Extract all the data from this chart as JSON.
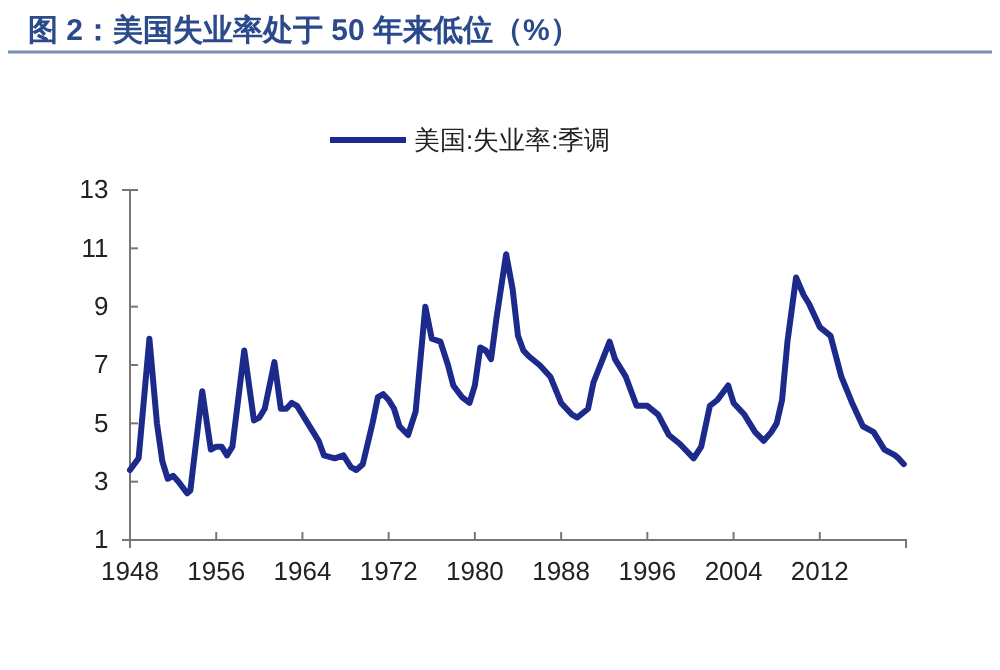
{
  "chart_data": {
    "type": "line",
    "title": "图 2：美国失业率处于 50 年来低位（%）",
    "xlim": [
      1948,
      2020
    ],
    "xticks": [
      1948,
      1956,
      1964,
      1972,
      1980,
      1988,
      1996,
      2004,
      2012
    ],
    "ylim": [
      1,
      13
    ],
    "yticks": [
      1,
      3,
      5,
      7,
      9,
      11,
      13
    ],
    "grid": false,
    "legend": "top",
    "marker": "none",
    "line_style": "solid",
    "series": [
      {
        "name": "美国:失业率:季调",
        "color": "#1c2a8c",
        "x": [
          1948.0,
          1948.8,
          1949.8,
          1950.5,
          1951.0,
          1951.5,
          1952.0,
          1952.5,
          1953.3,
          1953.6,
          1954.7,
          1955.5,
          1956.0,
          1956.5,
          1957.0,
          1957.5,
          1958.6,
          1959.5,
          1960.0,
          1960.5,
          1961.4,
          1962.0,
          1962.5,
          1963.0,
          1963.5,
          1964.5,
          1965.5,
          1966.0,
          1967.0,
          1967.8,
          1968.5,
          1969.0,
          1969.6,
          1970.5,
          1971.0,
          1971.5,
          1972.0,
          1972.5,
          1973.0,
          1973.8,
          1974.5,
          1975.4,
          1976.0,
          1976.8,
          1977.5,
          1978.0,
          1978.8,
          1979.5,
          1980.0,
          1980.5,
          1981.0,
          1981.5,
          1982.0,
          1982.9,
          1983.5,
          1984.0,
          1984.5,
          1985.0,
          1986.0,
          1987.0,
          1988.0,
          1989.0,
          1989.5,
          1990.5,
          1991.0,
          1992.5,
          1993.0,
          1994.0,
          1995.0,
          1996.0,
          1997.0,
          1998.0,
          1999.0,
          2000.3,
          2001.0,
          2001.8,
          2002.5,
          2003.5,
          2004.0,
          2005.0,
          2006.0,
          2006.8,
          2007.5,
          2008.0,
          2008.5,
          2009.0,
          2009.8,
          2010.5,
          2011.0,
          2012.0,
          2013.0,
          2014.0,
          2015.0,
          2016.0,
          2017.0,
          2018.0,
          2019.0,
          2019.3,
          2019.8
        ],
        "values": [
          3.4,
          3.8,
          7.9,
          5.0,
          3.7,
          3.1,
          3.2,
          3.0,
          2.6,
          2.7,
          6.1,
          4.1,
          4.2,
          4.2,
          3.9,
          4.2,
          7.5,
          5.1,
          5.2,
          5.5,
          7.1,
          5.5,
          5.5,
          5.7,
          5.6,
          5.0,
          4.4,
          3.9,
          3.8,
          3.9,
          3.5,
          3.4,
          3.6,
          5.0,
          5.9,
          6.0,
          5.8,
          5.5,
          4.9,
          4.6,
          5.4,
          9.0,
          7.9,
          7.8,
          7.0,
          6.3,
          5.9,
          5.7,
          6.3,
          7.6,
          7.5,
          7.2,
          8.6,
          10.8,
          9.6,
          8.0,
          7.5,
          7.3,
          7.0,
          6.6,
          5.7,
          5.3,
          5.2,
          5.5,
          6.4,
          7.8,
          7.2,
          6.6,
          5.6,
          5.6,
          5.3,
          4.6,
          4.3,
          3.8,
          4.2,
          5.6,
          5.8,
          6.3,
          5.7,
          5.3,
          4.7,
          4.4,
          4.7,
          5.0,
          5.8,
          7.8,
          10.0,
          9.4,
          9.1,
          8.3,
          8.0,
          6.6,
          5.7,
          4.9,
          4.7,
          4.1,
          3.9,
          3.8,
          3.6
        ]
      }
    ]
  }
}
